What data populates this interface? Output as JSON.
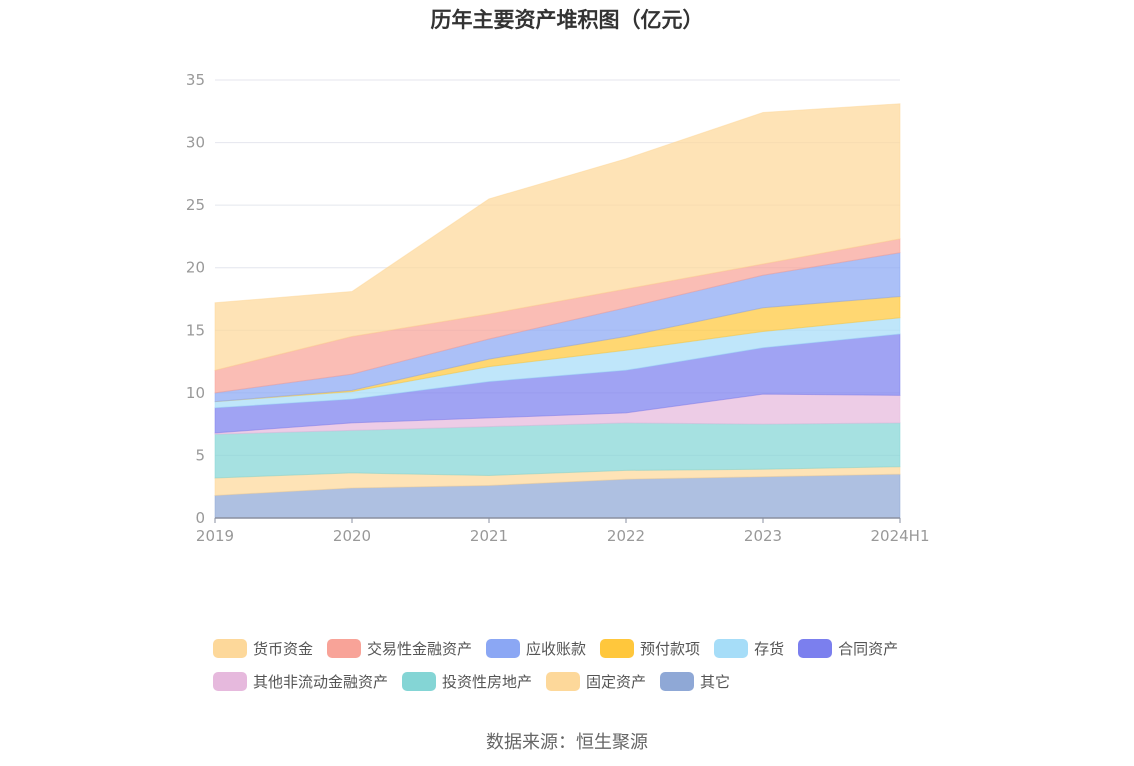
{
  "title": "历年主要资产堆积图（亿元）",
  "source": "数据来源：恒生聚源",
  "chart_data": {
    "type": "area",
    "stacked": true,
    "categories": [
      "2019",
      "2020",
      "2021",
      "2022",
      "2023",
      "2024H1"
    ],
    "ylim": [
      0,
      35
    ],
    "yticks": [
      "0",
      "5",
      "10",
      "15",
      "20",
      "25",
      "30",
      "35"
    ],
    "grid": true,
    "legend_position": "bottom",
    "series": [
      {
        "name": "其它",
        "color": "#8FA8D6",
        "values": [
          1.8,
          2.4,
          2.6,
          3.1,
          3.3,
          3.5
        ]
      },
      {
        "name": "固定资产",
        "color": "#FDD89A",
        "values": [
          1.4,
          1.2,
          0.8,
          0.7,
          0.6,
          0.6
        ]
      },
      {
        "name": "投资性房地产",
        "color": "#84D5D5",
        "values": [
          3.5,
          3.4,
          3.9,
          3.8,
          3.6,
          3.5
        ]
      },
      {
        "name": "其他非流动金融资产",
        "color": "#E6B9DD",
        "values": [
          0.1,
          0.6,
          0.7,
          0.8,
          2.4,
          2.2
        ]
      },
      {
        "name": "合同资产",
        "color": "#7B7FEE",
        "values": [
          2.0,
          1.9,
          2.9,
          3.4,
          3.7,
          4.9
        ]
      },
      {
        "name": "存货",
        "color": "#A6DDF8",
        "values": [
          0.5,
          0.6,
          1.2,
          1.6,
          1.3,
          1.3
        ]
      },
      {
        "name": "预付款项",
        "color": "#FFC73C",
        "values": [
          0.0,
          0.1,
          0.6,
          1.1,
          1.9,
          1.7
        ]
      },
      {
        "name": "应收账款",
        "color": "#8BA7F4",
        "values": [
          0.7,
          1.3,
          1.6,
          2.3,
          2.6,
          3.5
        ]
      },
      {
        "name": "交易性金融资产",
        "color": "#F8A398",
        "values": [
          1.8,
          3.0,
          2.0,
          1.5,
          0.9,
          1.1
        ]
      },
      {
        "name": "货币资金",
        "color": "#FDD89A",
        "values": [
          5.4,
          3.6,
          9.2,
          10.4,
          12.1,
          10.8
        ]
      }
    ]
  },
  "legend": {
    "rows": [
      [
        "货币资金",
        "交易性金融资产",
        "应收账款",
        "预付款项",
        "存货",
        "合同资产"
      ],
      [
        "其他非流动金融资产",
        "投资性房地产",
        "固定资产",
        "其它"
      ]
    ]
  }
}
